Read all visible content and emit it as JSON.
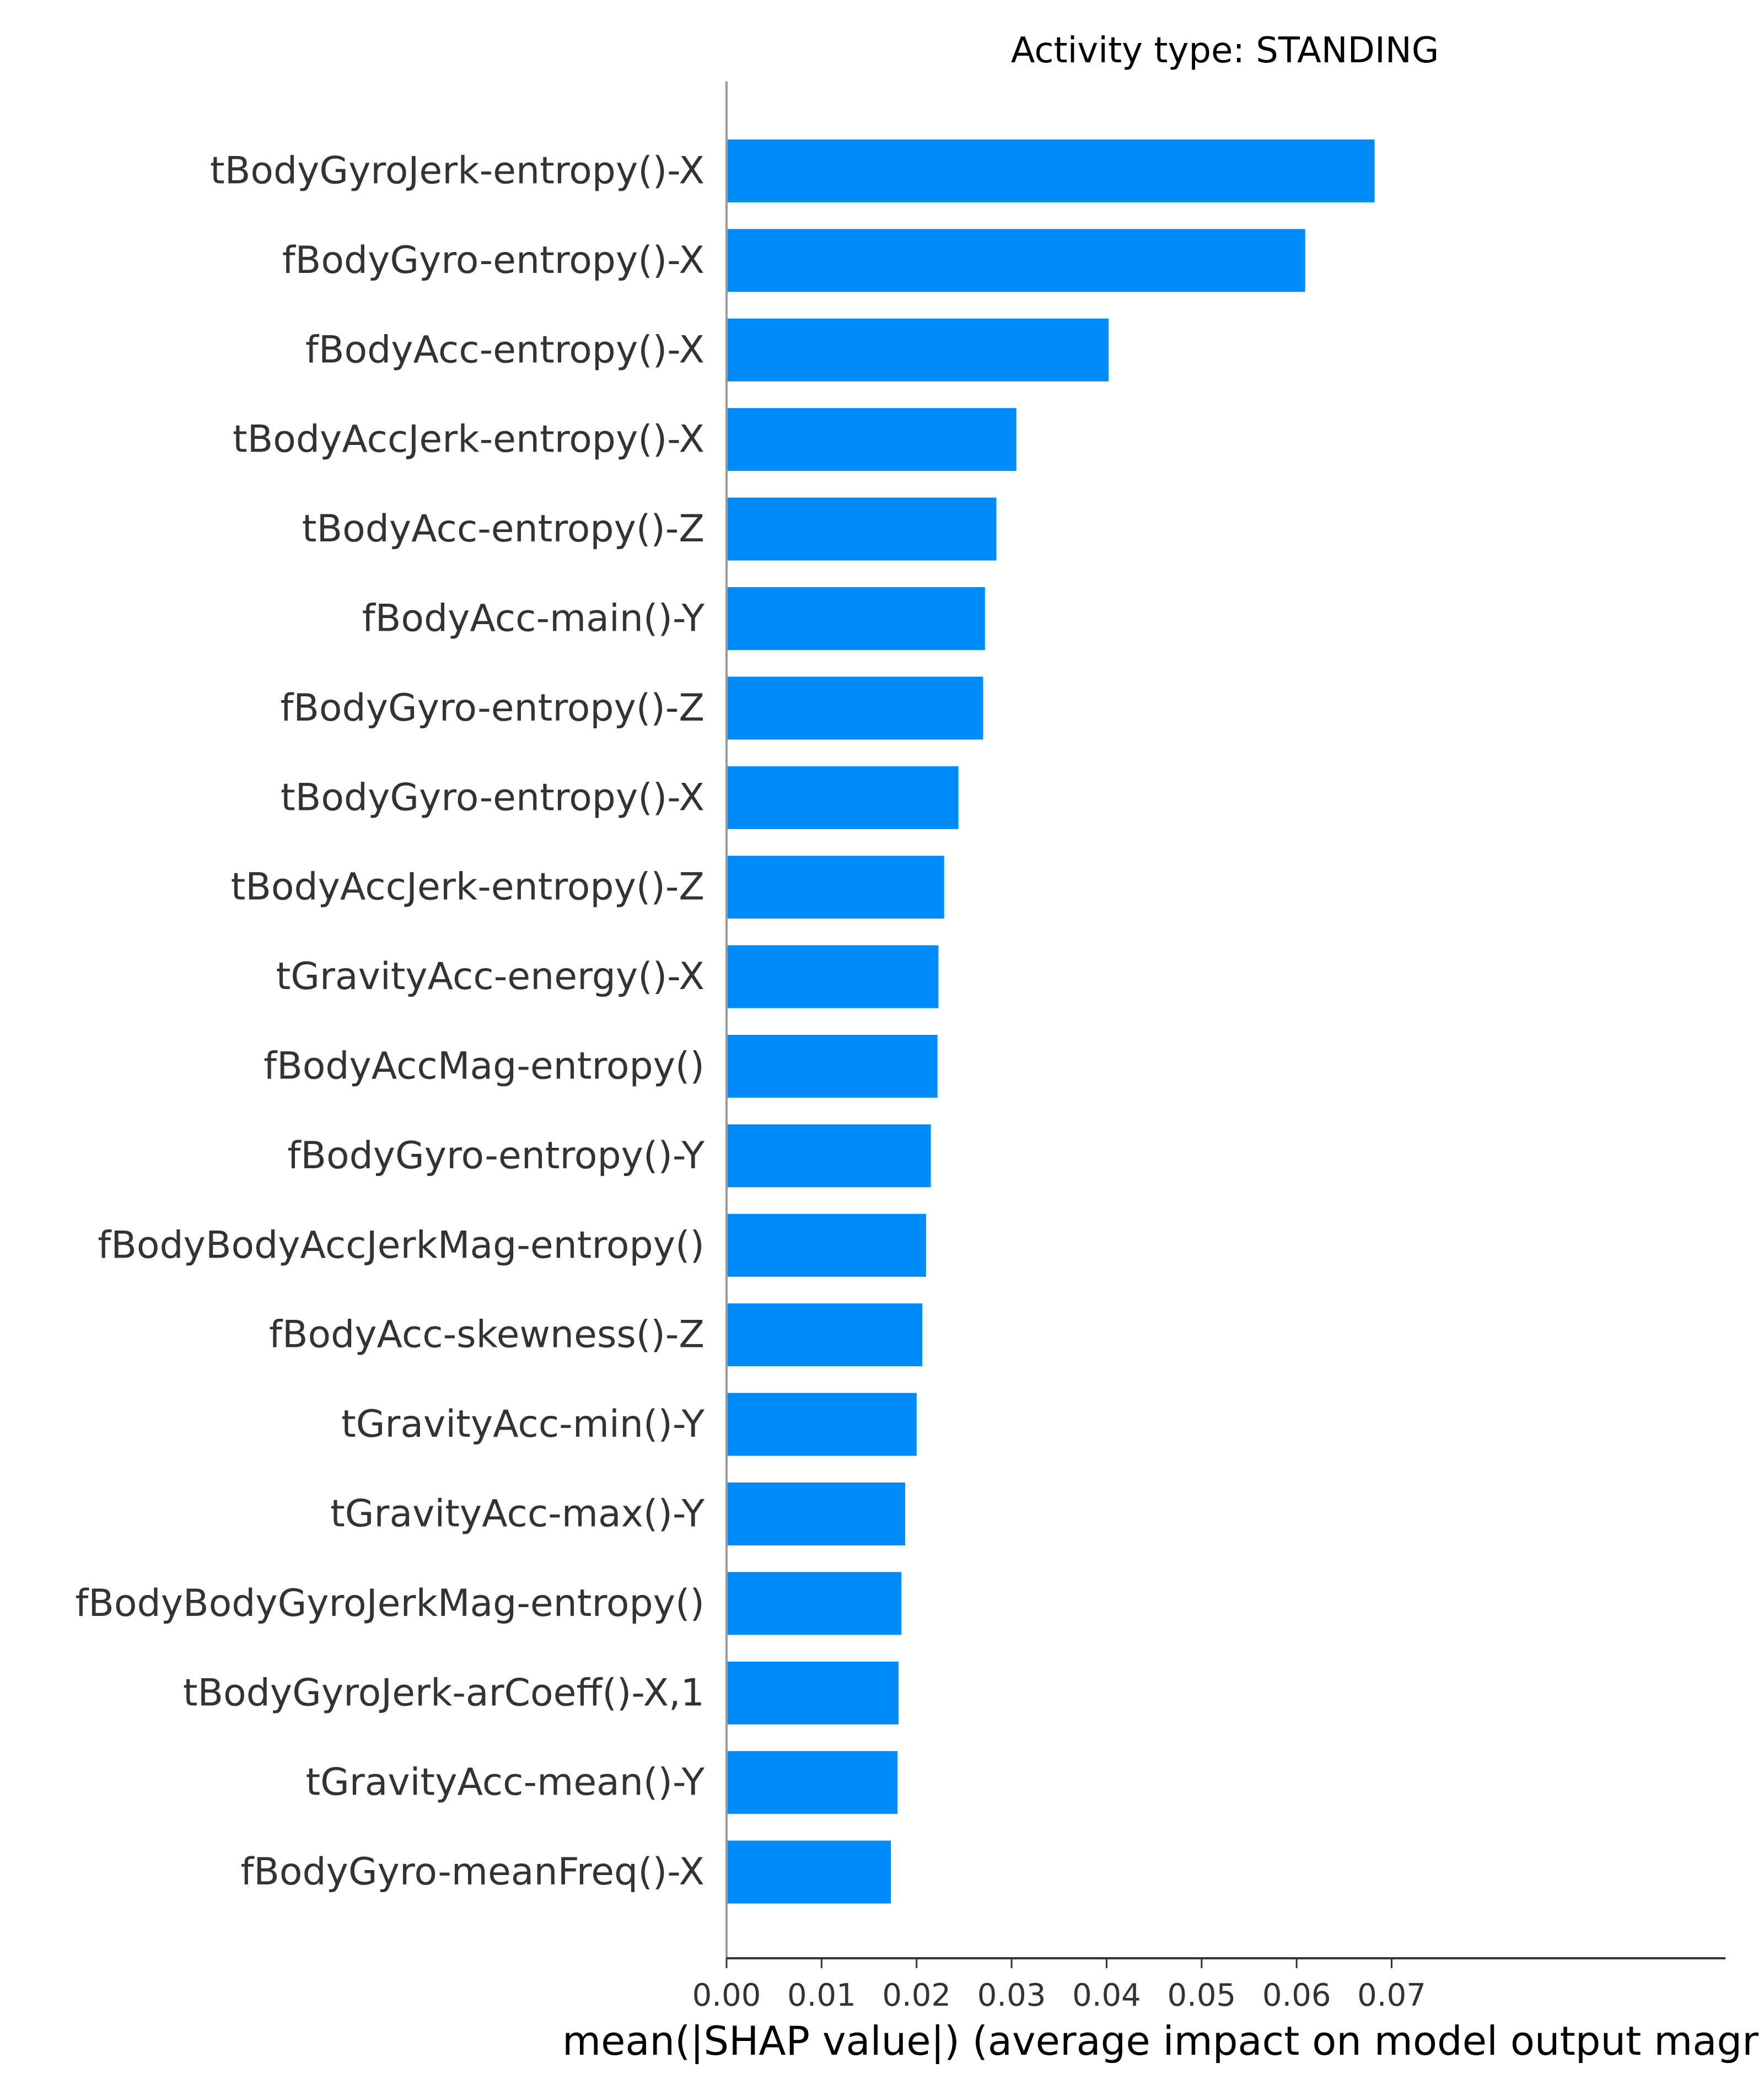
{
  "chart_data": {
    "type": "bar",
    "orientation": "horizontal",
    "title": "Activity type: STANDING",
    "xlabel": "mean(|SHAP value|) (average impact on model output magr",
    "ylabel": "",
    "xlim": [
      0,
      0.0718
    ],
    "xticks": [
      "0.00",
      "0.01",
      "0.02",
      "0.03",
      "0.04",
      "0.05",
      "0.06",
      "0.07"
    ],
    "xtick_values": [
      0,
      0.01,
      0.02,
      0.03,
      0.04,
      0.05,
      0.06,
      0.07
    ],
    "grid": false,
    "bar_color": "#008bfb",
    "categories": [
      "tBodyGyroJerk-entropy()-X",
      "fBodyGyro-entropy()-X",
      "fBodyAcc-entropy()-X",
      "tBodyAccJerk-entropy()-X",
      "tBodyAcc-entropy()-Z",
      "fBodyAcc-main()-Y",
      "fBodyGyro-entropy()-Z",
      "tBodyGyro-entropy()-X",
      "tBodyAccJerk-entropy()-Z",
      "tGravityAcc-energy()-X",
      "fBodyAccMag-entropy()",
      "fBodyGyro-entropy()-Y",
      "fBodyBodyAccJerkMag-entropy()",
      "fBodyAcc-skewness()-Z",
      "tGravityAcc-min()-Y",
      "tGravityAcc-max()-Y",
      "fBodyBodyGyroJerkMag-entropy()",
      "tBodyGyroJerk-arCoeff()-X,1",
      "tGravityAcc-mean()-Y",
      "fBodyGyro-meanFreq()-X"
    ],
    "values": [
      0.0682,
      0.0609,
      0.0402,
      0.0305,
      0.0284,
      0.0272,
      0.027,
      0.0244,
      0.0229,
      0.0223,
      0.0222,
      0.0215,
      0.021,
      0.0206,
      0.02,
      0.0188,
      0.0184,
      0.0181,
      0.018,
      0.0173
    ]
  }
}
